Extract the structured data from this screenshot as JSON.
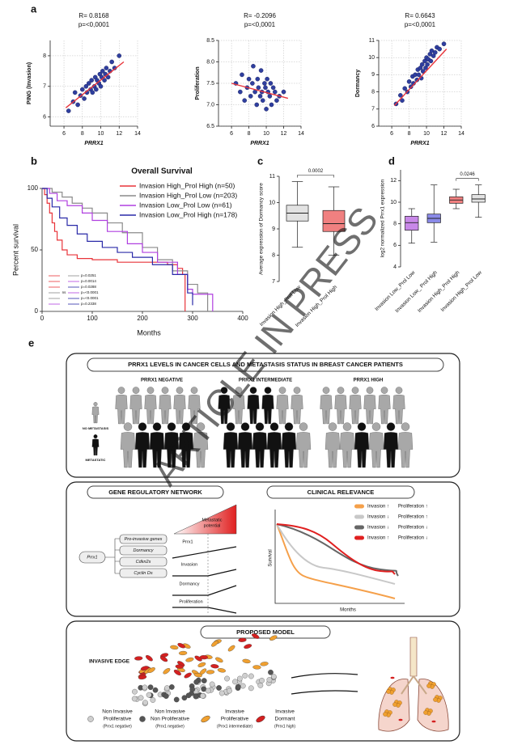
{
  "panel_labels": [
    "a",
    "b",
    "c",
    "d",
    "e"
  ],
  "watermark": "ARTICLE IN PRESS",
  "chart_data": [
    {
      "type": "scatter",
      "title": "R= 0.8168",
      "subtitle": "p=<0,0001",
      "x_label": "PRRX1",
      "y_label": "PING (Invasion)",
      "color": "#2f3f9f",
      "trend_color": "#e8343a",
      "x": [
        6.5,
        7,
        7.2,
        7.5,
        7.8,
        8,
        8.2,
        8.4,
        8.5,
        8.7,
        8.9,
        9,
        9.1,
        9.3,
        9.4,
        9.5,
        9.6,
        9.8,
        9.9,
        10,
        10.1,
        10.2,
        10.4,
        10.5,
        10.6,
        10.8,
        11,
        11.2,
        11.5,
        12
      ],
      "values": [
        6.2,
        6.5,
        6.8,
        6.4,
        6.7,
        6.9,
        6.6,
        7.0,
        6.8,
        7.1,
        6.9,
        7.2,
        6.8,
        7.0,
        7.3,
        6.9,
        7.2,
        7.1,
        7.4,
        7.0,
        7.3,
        7.5,
        7.2,
        7.4,
        7.6,
        7.3,
        7.5,
        7.8,
        7.6,
        8.0
      ],
      "trend_line": {
        "x": [
          6.2,
          12.5
        ],
        "values": [
          6.3,
          7.8
        ]
      },
      "xlim": [
        4.5,
        14
      ],
      "xticks": [
        6,
        8,
        10,
        12,
        14
      ],
      "ylim": [
        5.7,
        8.5
      ],
      "yticks": [
        6,
        7,
        8
      ],
      "grid": true
    },
    {
      "type": "scatter",
      "title": "R= -0.2096",
      "subtitle": "p=<0,0001",
      "x_label": "PRRX1",
      "y_label": "Proliferation",
      "color": "#2f3f9f",
      "trend_color": "#e8343a",
      "x": [
        6.5,
        7,
        7.2,
        7.5,
        7.8,
        8,
        8.2,
        8.4,
        8.5,
        8.7,
        8.9,
        9,
        9.1,
        9.3,
        9.4,
        9.5,
        9.6,
        9.8,
        9.9,
        10,
        10.1,
        10.2,
        10.4,
        10.5,
        10.6,
        10.8,
        11,
        11.2,
        11.5,
        12
      ],
      "values": [
        7.5,
        7.3,
        7.7,
        7.1,
        7.4,
        7.6,
        7.2,
        7.5,
        7.9,
        7.3,
        7.0,
        7.6,
        7.4,
        7.2,
        7.8,
        7.3,
        7.1,
        7.5,
        7.4,
        6.9,
        7.6,
        7.3,
        7.2,
        7.5,
        7.0,
        7.4,
        7.3,
        7.1,
        7.2,
        7.3
      ],
      "trend_line": {
        "x": [
          6,
          12.5
        ],
        "values": [
          7.5,
          7.15
        ]
      },
      "xlim": [
        4.5,
        14
      ],
      "xticks": [
        6,
        8,
        10,
        12,
        14
      ],
      "ylim": [
        6.5,
        8.5
      ],
      "yticks": [
        6.5,
        {
          "value": 7,
          "label": "7.0"
        },
        7.5,
        {
          "value": 8,
          "label": "8.0"
        },
        8.5
      ],
      "grid": true
    },
    {
      "type": "scatter",
      "title": "R= 0.6643",
      "subtitle": "p=<0,0001",
      "x_label": "PRRX1",
      "y_label": "Dormancy",
      "color": "#2f3f9f",
      "trend_color": "#e8343a",
      "x": [
        6.5,
        7,
        7.2,
        7.5,
        7.8,
        8,
        8.2,
        8.4,
        8.5,
        8.7,
        8.9,
        9,
        9.1,
        9.3,
        9.4,
        9.5,
        9.6,
        9.8,
        9.9,
        10,
        10.1,
        10.2,
        10.4,
        10.5,
        10.6,
        10.8,
        11,
        11.2,
        11.5,
        12
      ],
      "values": [
        7.3,
        7.8,
        7.5,
        8.2,
        8.0,
        8.6,
        8.3,
        8.9,
        8.5,
        9.0,
        8.7,
        9.3,
        9.0,
        9.4,
        8.8,
        9.6,
        9.2,
        9.8,
        9.4,
        10.0,
        9.6,
        9.9,
        10.2,
        9.8,
        10.4,
        10.1,
        10.3,
        10.6,
        10.5,
        10.8
      ],
      "trend_line": {
        "x": [
          6.3,
          12.3
        ],
        "values": [
          7.2,
          10.5
        ]
      },
      "xlim": [
        4.5,
        14
      ],
      "xticks": [
        6,
        8,
        10,
        12,
        14
      ],
      "ylim": [
        6,
        11
      ],
      "yticks": [
        6,
        7,
        8,
        9,
        10,
        11
      ],
      "grid": true
    },
    {
      "type": "survival",
      "title": "Overall Survival",
      "x_label": "Months",
      "y_label": "Percent survival",
      "xlim": [
        0,
        400
      ],
      "xticks": [
        0,
        100,
        200,
        300,
        400
      ],
      "ylim": [
        0,
        100
      ],
      "yticks": [
        0,
        50,
        100
      ],
      "legend": "upper right",
      "series": [
        {
          "name": "Invasion High_Prol High (n=50)",
          "color": "#e8343a",
          "x": [
            0,
            5,
            10,
            15,
            20,
            25,
            30,
            40,
            50,
            70,
            100,
            150,
            200,
            250,
            270,
            280,
            285
          ],
          "values": [
            100,
            95,
            88,
            80,
            72,
            65,
            58,
            50,
            46,
            43,
            42,
            40,
            40,
            38,
            35,
            30,
            0
          ]
        },
        {
          "name": "Invasion High_Prol Low (n=203)",
          "color": "#8a8a8a",
          "x": [
            0,
            20,
            40,
            60,
            80,
            100,
            130,
            160,
            200,
            230,
            260,
            290,
            310,
            330
          ],
          "values": [
            100,
            97,
            93,
            88,
            84,
            80,
            72,
            64,
            52,
            42,
            33,
            22,
            15,
            0
          ]
        },
        {
          "name": "Invasion Low_Prol Low (n=61)",
          "color": "#b040e0",
          "x": [
            0,
            15,
            30,
            50,
            80,
            100,
            130,
            170,
            200,
            230,
            270,
            290,
            300,
            340
          ],
          "values": [
            100,
            96,
            90,
            86,
            80,
            74,
            65,
            55,
            48,
            40,
            30,
            18,
            14,
            0
          ]
        },
        {
          "name": "Invasion Low_Prol High (n=178)",
          "color": "#2a2aa8",
          "x": [
            0,
            10,
            20,
            35,
            50,
            70,
            90,
            120,
            150,
            180,
            220,
            260,
            290,
            300
          ],
          "values": [
            100,
            92,
            85,
            76,
            70,
            63,
            57,
            52,
            48,
            44,
            38,
            30,
            15,
            5
          ]
        }
      ],
      "comparisons": [
        {
          "colors": [
            "#e8343a",
            "#8a8a8a"
          ],
          "label": "p=0.0251"
        },
        {
          "colors": [
            "#e8343a",
            "#b040e0"
          ],
          "label": "p=0.0014"
        },
        {
          "colors": [
            "#e8343a",
            "#2a2aa8"
          ],
          "label": "p=0.0288"
        },
        {
          "colors": [
            "#8a8a8a",
            "#b040e0"
          ],
          "label": "p=<0.0001"
        },
        {
          "colors": [
            "#8a8a8a",
            "#2a2aa8"
          ],
          "label": "p=<0.0001"
        },
        {
          "colors": [
            "#b040e0",
            "#2a2aa8"
          ],
          "label": "p=0.2338"
        }
      ],
      "note": "ns"
    },
    {
      "type": "box",
      "y_label": "Average expression of Dormancy score",
      "ylim": [
        7,
        11
      ],
      "yticks": [
        7,
        8,
        9,
        10,
        11
      ],
      "categories": [
        "Invasion High_Prol Low",
        "Invasion High_Prol High"
      ],
      "boxes": [
        {
          "color": "#e2e2e2",
          "min": 8.3,
          "q1": 9.3,
          "median": 9.6,
          "q3": 9.9,
          "max": 10.8
        },
        {
          "color": "#f08080",
          "min": 8.0,
          "q1": 8.9,
          "median": 9.2,
          "q3": 9.7,
          "max": 10.6
        }
      ],
      "significance": [
        {
          "label": "0.0002",
          "pair": [
            0,
            1
          ]
        }
      ]
    },
    {
      "type": "box",
      "y_label": "log2 normalized Prrx1 expression",
      "ylim": [
        4,
        13
      ],
      "yticks": [
        4,
        6,
        8,
        10,
        12
      ],
      "categories": [
        "Invasion Low_Prol Low",
        "Invasion Low_ Prol High",
        "Invasion High_Prol High",
        "Invasion High_Prol Low"
      ],
      "boxes": [
        {
          "color": "#c888e8",
          "min": 6.2,
          "q1": 7.4,
          "median": 8.1,
          "q3": 8.7,
          "max": 9.4
        },
        {
          "color": "#8a8ae8",
          "min": 6.3,
          "q1": 8.1,
          "median": 8.5,
          "q3": 8.9,
          "max": 11.6
        },
        {
          "color": "#f08080",
          "min": 9.4,
          "q1": 9.9,
          "median": 10.2,
          "q3": 10.5,
          "max": 11.2
        },
        {
          "color": "#e2e2e2",
          "min": 8.6,
          "q1": 10.0,
          "median": 10.3,
          "q3": 10.7,
          "max": 11.6
        }
      ],
      "significance": [
        {
          "label": "0.0246",
          "pair": [
            2,
            3
          ]
        }
      ]
    }
  ],
  "diagram": {
    "status": {
      "title": "PRRX1 LEVELS IN CANCER CELLS AND METASTASIS STATUS IN BREAST CANCER PATIENTS",
      "groups": [
        "PRRX1 NEGATIVE",
        "PRRX1 INTERMEDIATE",
        "PRRX1 HIGH"
      ],
      "legend": [
        "NO METASTASIS",
        "METASTATIC"
      ]
    },
    "network": {
      "title": "GENE REGULATORY NETWORK",
      "regulator": "Prrx1",
      "genes": [
        "Pro-invasive genes",
        "Dormancy",
        "Cdkn2s",
        "Cyclin Ds"
      ],
      "triangle": [
        "Metastatic",
        "potential"
      ],
      "trends": [
        "Prrx1",
        "Invasion",
        "Dormancy",
        "Proliferation"
      ]
    },
    "clinical": {
      "title": "CLINICAL RELEVANCE",
      "y_label": "Survival",
      "x_label": "Months",
      "legend": [
        {
          "color": "#f5a04a",
          "invasion": "Invasion ↑",
          "proliferation": "Proliferation ↑"
        },
        {
          "color": "#c8c8c8",
          "invasion": "Invasion ↓",
          "proliferation": "Proliferation ↑"
        },
        {
          "color": "#666666",
          "invasion": "Invasion ↓",
          "proliferation": "Proliferation ↓"
        },
        {
          "color": "#e02020",
          "invasion": "Invasion ↑",
          "proliferation": "Proliferation ↓"
        }
      ]
    },
    "model": {
      "title": "PROPOSED MODEL",
      "edge": "INVASIVE EDGE",
      "cells": [
        {
          "color": "#cfcfcf",
          "lines": [
            "Non Invasive",
            "Proliferative",
            "(Prrx1 negative)"
          ]
        },
        {
          "color": "#555555",
          "lines": [
            "Non Invasive",
            "Non Proliferative",
            "(Prrx1 negative)"
          ]
        },
        {
          "color": "#f0a030",
          "lines": [
            "Invasive",
            "Proliferative",
            "(Prrx1 intermediate)"
          ]
        },
        {
          "color": "#d42020",
          "lines": [
            "Invasive",
            "Dormant",
            "(Prrx1 high)"
          ]
        }
      ]
    }
  }
}
